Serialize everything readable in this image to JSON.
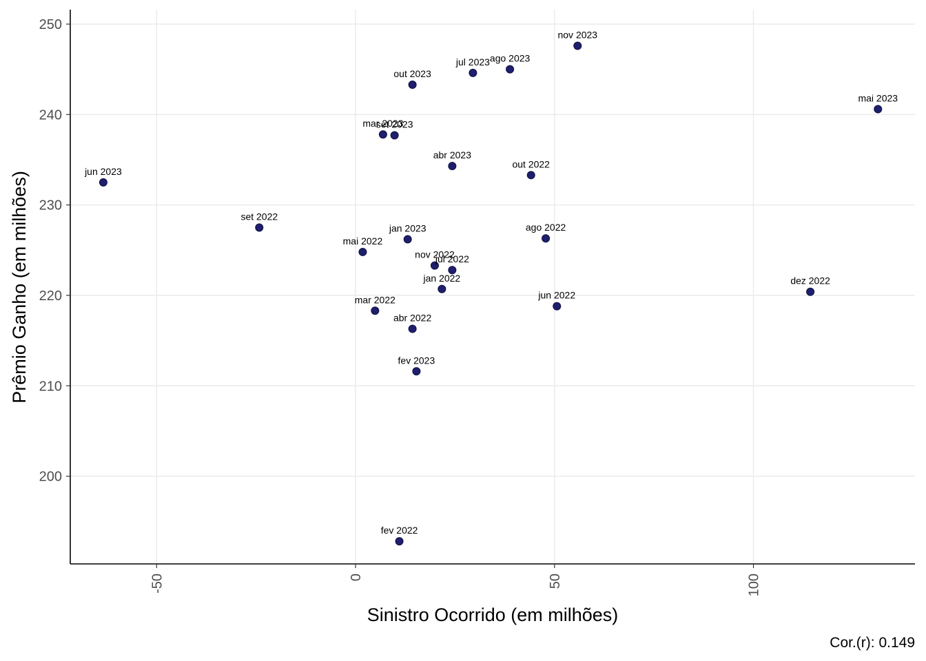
{
  "chart_data": {
    "type": "scatter",
    "xlabel": "Sinistro Ocorrido (em milhões)",
    "ylabel": "Prêmio Ganho (em milhões)",
    "caption": "Cor.(r): 0.149",
    "xlim": [
      -71.7,
      140.6
    ],
    "ylim": [
      190.3,
      251.6
    ],
    "x_ticks": [
      -50,
      0,
      50,
      100
    ],
    "y_ticks": [
      200,
      210,
      220,
      230,
      240,
      250
    ],
    "grid": true,
    "point_color": "#1f1f6e",
    "points": [
      {
        "label": "fev 2022",
        "x": 11.0,
        "y": 192.8
      },
      {
        "label": "mar 2022",
        "x": 4.9,
        "y": 218.3
      },
      {
        "label": "abr 2022",
        "x": 14.3,
        "y": 216.3
      },
      {
        "label": "mai 2022",
        "x": 1.8,
        "y": 224.8
      },
      {
        "label": "jun 2022",
        "x": 50.6,
        "y": 218.8
      },
      {
        "label": "jul 2022",
        "x": 24.3,
        "y": 222.8
      },
      {
        "label": "ago 2022",
        "x": 47.8,
        "y": 226.3
      },
      {
        "label": "set 2022",
        "x": -24.2,
        "y": 227.5
      },
      {
        "label": "out 2022",
        "x": 44.1,
        "y": 233.3
      },
      {
        "label": "nov 2022",
        "x": 19.9,
        "y": 223.3
      },
      {
        "label": "dez 2022",
        "x": 114.3,
        "y": 220.4
      },
      {
        "label": "jan 2022",
        "x": 21.7,
        "y": 220.7
      },
      {
        "label": "jan 2023",
        "x": 13.1,
        "y": 226.2
      },
      {
        "label": "fev 2023",
        "x": 15.3,
        "y": 211.6
      },
      {
        "label": "mar 2023",
        "x": 6.9,
        "y": 237.8
      },
      {
        "label": "abr 2023",
        "x": 24.3,
        "y": 234.3
      },
      {
        "label": "mai 2023",
        "x": 131.3,
        "y": 240.6
      },
      {
        "label": "jun 2023",
        "x": -63.4,
        "y": 232.5
      },
      {
        "label": "jul 2023",
        "x": 29.5,
        "y": 244.6
      },
      {
        "label": "ago 2023",
        "x": 38.8,
        "y": 245.0
      },
      {
        "label": "set 2023",
        "x": 9.8,
        "y": 237.7
      },
      {
        "label": "out 2023",
        "x": 14.3,
        "y": 243.3
      },
      {
        "label": "nov 2023",
        "x": 55.8,
        "y": 247.6
      }
    ]
  }
}
